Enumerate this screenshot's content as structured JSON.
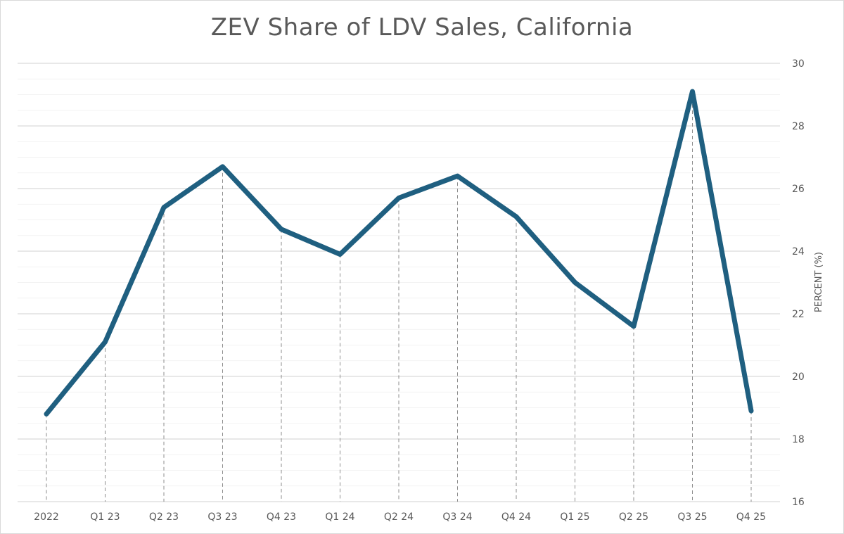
{
  "chart_data": {
    "type": "line",
    "title": "ZEV Share of LDV Sales, California",
    "xlabel": "",
    "ylabel": "PERCENT (%)",
    "categories": [
      "2022",
      "Q1 23",
      "Q2 23",
      "Q3 23",
      "Q4 23",
      "Q1 24",
      "Q2 24",
      "Q3 24",
      "Q4 24",
      "Q1 25",
      "Q2 25",
      "Q3 25",
      "Q4 25"
    ],
    "series": [
      {
        "name": "ZEV share",
        "values": [
          18.8,
          21.1,
          25.4,
          26.7,
          24.7,
          23.9,
          25.7,
          26.4,
          25.1,
          23.0,
          21.6,
          29.1,
          18.9
        ]
      }
    ],
    "ylim": [
      16,
      30
    ],
    "yticks": [
      16,
      18,
      20,
      22,
      24,
      26,
      28,
      30
    ],
    "y_axis_side": "right",
    "grid": true,
    "drop_lines": true,
    "colors": {
      "line": "#1f5f80",
      "grid": "#d9d9d9",
      "drop": "#8c8c8c",
      "text": "#595959"
    }
  }
}
